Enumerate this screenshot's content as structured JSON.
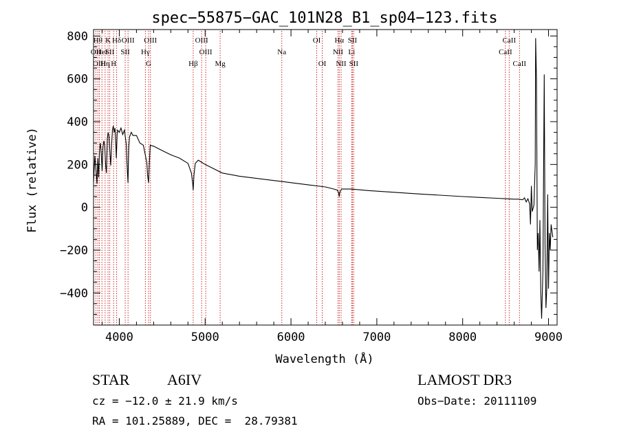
{
  "chart_data": {
    "type": "line",
    "title": "spec−55875−GAC_101N28_B1_sp04−123.fits",
    "xlabel": "Wavelength (Å)",
    "ylabel": "Flux (relative)",
    "xlim": [
      3700,
      9100
    ],
    "ylim": [
      -550,
      830
    ],
    "xticks": [
      4000,
      5000,
      6000,
      7000,
      8000,
      9000
    ],
    "yticks": [
      -400,
      -200,
      0,
      200,
      400,
      600,
      800
    ],
    "xtick_labels": [
      "4000",
      "5000",
      "6000",
      "7000",
      "8000",
      "9000"
    ],
    "ytick_labels": [
      "−400",
      "−200",
      "0",
      "200",
      "400",
      "600",
      "800"
    ],
    "grid": false,
    "series": [
      {
        "name": "spectrum",
        "x": [
          3700,
          3715,
          3730,
          3740,
          3750,
          3760,
          3770,
          3780,
          3790,
          3800,
          3810,
          3820,
          3830,
          3840,
          3850,
          3860,
          3870,
          3880,
          3890,
          3900,
          3910,
          3920,
          3930,
          3940,
          3950,
          3960,
          3965,
          3970,
          3975,
          3980,
          3990,
          4000,
          4020,
          4040,
          4060,
          4080,
          4090,
          4101,
          4110,
          4120,
          4140,
          4160,
          4200,
          4240,
          4280,
          4320,
          4330,
          4341,
          4350,
          4360,
          4400,
          4500,
          4600,
          4700,
          4800,
          4840,
          4855,
          4861,
          4870,
          4885,
          4920,
          5000,
          5100,
          5200,
          5400,
          5600,
          5800,
          5900,
          6000,
          6200,
          6400,
          6500,
          6540,
          6556,
          6563,
          6570,
          6590,
          6700,
          6900,
          7200,
          7500,
          7800,
          8000,
          8200,
          8400,
          8500,
          8600,
          8650,
          8700,
          8720,
          8740,
          8760,
          8780,
          8790,
          8800,
          8810,
          8830,
          8845,
          8850,
          8860,
          8870,
          8880,
          8890,
          8900,
          8910,
          8920,
          8935,
          8950,
          8960,
          8970,
          8980,
          8990,
          9000,
          9010,
          9020,
          9030,
          9040,
          9050
        ],
        "values": [
          115,
          240,
          170,
          110,
          230,
          140,
          270,
          300,
          250,
          170,
          280,
          310,
          290,
          200,
          160,
          320,
          350,
          330,
          260,
          195,
          290,
          360,
          380,
          350,
          370,
          290,
          230,
          280,
          340,
          360,
          355,
          350,
          370,
          340,
          360,
          300,
          200,
          115,
          280,
          330,
          350,
          335,
          335,
          300,
          290,
          210,
          150,
          115,
          200,
          290,
          285,
          265,
          245,
          230,
          205,
          160,
          110,
          80,
          150,
          205,
          220,
          200,
          180,
          160,
          145,
          135,
          125,
          120,
          115,
          105,
          95,
          85,
          80,
          65,
          50,
          72,
          85,
          85,
          78,
          70,
          62,
          55,
          50,
          46,
          42,
          40,
          38,
          38,
          35,
          44,
          25,
          40,
          15,
          -80,
          100,
          -20,
          10,
          200,
          790,
          600,
          -200,
          -120,
          -300,
          -60,
          -400,
          -520,
          -300,
          620,
          -180,
          -470,
          -380,
          60,
          -380,
          -120,
          -200,
          -80,
          -110,
          -140
        ]
      }
    ],
    "lines": [
      {
        "wave": 3727,
        "label": "OII",
        "row": 1
      },
      {
        "wave": 3750,
        "label": "Hθ",
        "row": 0
      },
      {
        "wave": 3768,
        "label": "OIII",
        "row": 2
      },
      {
        "wave": 3798,
        "label": "HeI",
        "row": 1
      },
      {
        "wave": 3835,
        "label": "Hη",
        "row": 2
      },
      {
        "wave": 3869,
        "label": "K",
        "row": 0
      },
      {
        "wave": 3889,
        "label": "SII",
        "row": 1
      },
      {
        "wave": 3934,
        "label": "H",
        "row": 2
      },
      {
        "wave": 3969,
        "label": "Hδ",
        "row": 0
      },
      {
        "wave": 4069,
        "label": "SII",
        "row": 1
      },
      {
        "wave": 4102,
        "label": "OIII",
        "row": 0
      },
      {
        "wave": 4304,
        "label": "Hγ",
        "row": 1
      },
      {
        "wave": 4341,
        "label": "G",
        "row": 2
      },
      {
        "wave": 4363,
        "label": "OIII",
        "row": 0
      },
      {
        "wave": 4861,
        "label": "Hβ",
        "row": 2
      },
      {
        "wave": 4959,
        "label": "OIII",
        "row": 0
      },
      {
        "wave": 5007,
        "label": "OIII",
        "row": 1
      },
      {
        "wave": 5175,
        "label": "Mg",
        "row": 2
      },
      {
        "wave": 5893,
        "label": "Na",
        "row": 1
      },
      {
        "wave": 6300,
        "label": "OI",
        "row": 0
      },
      {
        "wave": 6364,
        "label": "OI",
        "row": 2
      },
      {
        "wave": 6548,
        "label": "NII",
        "row": 1
      },
      {
        "wave": 6563,
        "label": "Hα",
        "row": 0
      },
      {
        "wave": 6584,
        "label": "NII",
        "row": 2
      },
      {
        "wave": 6707,
        "label": "Li",
        "row": 1
      },
      {
        "wave": 6716,
        "label": "SII",
        "row": 0
      },
      {
        "wave": 6731,
        "label": "SII",
        "row": 2
      },
      {
        "wave": 8498,
        "label": "CaII",
        "row": 1
      },
      {
        "wave": 8542,
        "label": "CaII",
        "row": 0
      },
      {
        "wave": 8662,
        "label": "CaII",
        "row": 2
      }
    ],
    "line_color": "#cc2222"
  },
  "footer": {
    "object_class": "STAR",
    "subclass": "A6IV",
    "survey": "LAMOST DR3",
    "redshift": "cz = −12.0 ± 21.9 km/s",
    "obs_date": "Obs−Date: 20111109",
    "coords": "RA = 101.25889, DEC =  28.79381"
  }
}
